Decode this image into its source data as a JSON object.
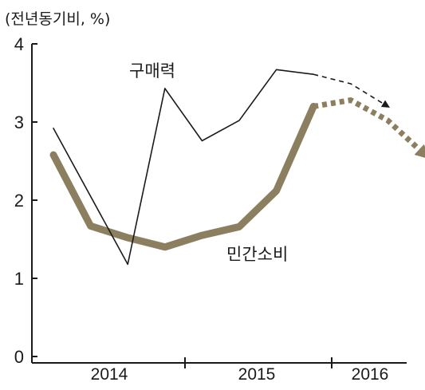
{
  "chart_data": {
    "type": "line",
    "unit_label": "(전년동기비, %)",
    "yticks": [
      "0",
      "1",
      "2",
      "3",
      "4"
    ],
    "ylim": [
      0,
      4
    ],
    "year_labels": [
      "2014",
      "2015",
      "2016"
    ],
    "x": [
      "2013Q4",
      "2014Q1",
      "2014Q2",
      "2014Q3",
      "2014Q4",
      "2015Q1",
      "2015Q2",
      "2015Q3",
      "2015Q4",
      "2016Q1",
      "2016Q2"
    ],
    "series": [
      {
        "name": "구매력",
        "color": "#1a1a1a",
        "style": "thin",
        "values": [
          2.92,
          2.05,
          1.18,
          3.43,
          2.76,
          3.02,
          3.67,
          3.61,
          null,
          null,
          null
        ],
        "forecast": [
          null,
          null,
          null,
          null,
          null,
          null,
          null,
          3.61,
          3.49,
          3.2,
          null
        ]
      },
      {
        "name": "민간소비",
        "color": "#8b7f60",
        "style": "thick",
        "values": [
          2.58,
          1.67,
          1.52,
          1.4,
          1.55,
          1.66,
          2.12,
          3.2,
          null,
          null,
          null
        ],
        "forecast": [
          null,
          null,
          null,
          null,
          null,
          null,
          null,
          3.2,
          3.28,
          3.02,
          2.58
        ]
      }
    ]
  }
}
